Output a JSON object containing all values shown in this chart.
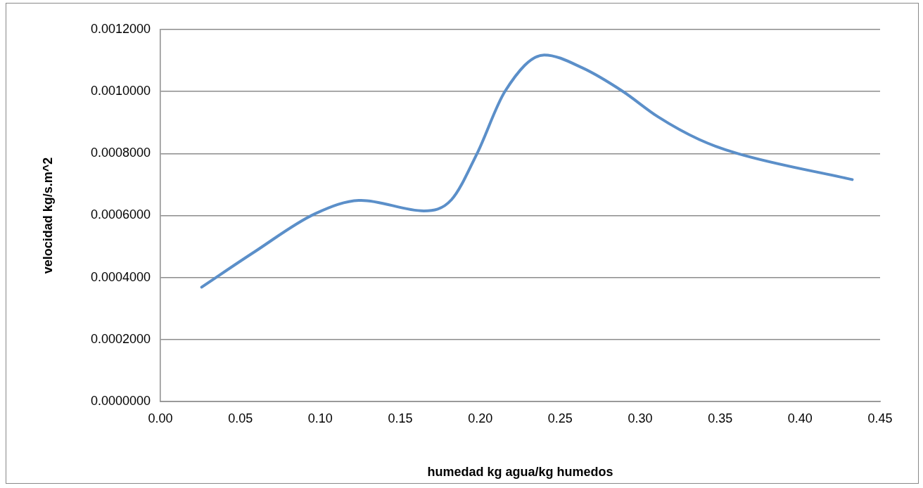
{
  "chart_data": {
    "type": "line",
    "xlabel": "humedad kg agua/kg humedos",
    "ylabel": "velocidad kg/s.m^2",
    "x": [
      0.0258,
      0.0586,
      0.0968,
      0.1255,
      0.1648,
      0.182,
      0.198,
      0.2155,
      0.24,
      0.264,
      0.289,
      0.311,
      0.337,
      0.361,
      0.4326
    ],
    "series": [
      {
        "color": "#5b8fc9",
        "values": [
          0.000369,
          0.000482,
          0.000606,
          0.000649,
          0.000615,
          0.000651,
          0.0008,
          0.001001,
          0.001118,
          0.001076,
          0.001001,
          0.000919,
          0.000845,
          0.0008,
          0.000716
        ]
      }
    ],
    "xlim": [
      0,
      0.45
    ],
    "xticks": [
      {
        "value": 0,
        "label": "0.00"
      },
      {
        "value": 0.05,
        "label": "0.05"
      },
      {
        "value": 0.1,
        "label": "0.10"
      },
      {
        "value": 0.15,
        "label": "0.15"
      },
      {
        "value": 0.2,
        "label": "0.20"
      },
      {
        "value": 0.25,
        "label": "0.25"
      },
      {
        "value": 0.3,
        "label": "0.30"
      },
      {
        "value": 0.35,
        "label": "0.35"
      },
      {
        "value": 0.4,
        "label": "0.40"
      },
      {
        "value": 0.45,
        "label": "0.45"
      }
    ],
    "ylim": [
      0,
      0.0012
    ],
    "yticks": [
      {
        "value": 0,
        "label": "0.0000000"
      },
      {
        "value": 0.0002,
        "label": "0.0002000"
      },
      {
        "value": 0.0004,
        "label": "0.0004000"
      },
      {
        "value": 0.0006,
        "label": "0.0006000"
      },
      {
        "value": 0.0008,
        "label": "0.0008000"
      },
      {
        "value": 0.001,
        "label": "0.0010000"
      },
      {
        "value": 0.0012,
        "label": "0.0012000"
      }
    ],
    "grid": "y",
    "legend": false,
    "marker": "none",
    "line_style": "solid"
  }
}
